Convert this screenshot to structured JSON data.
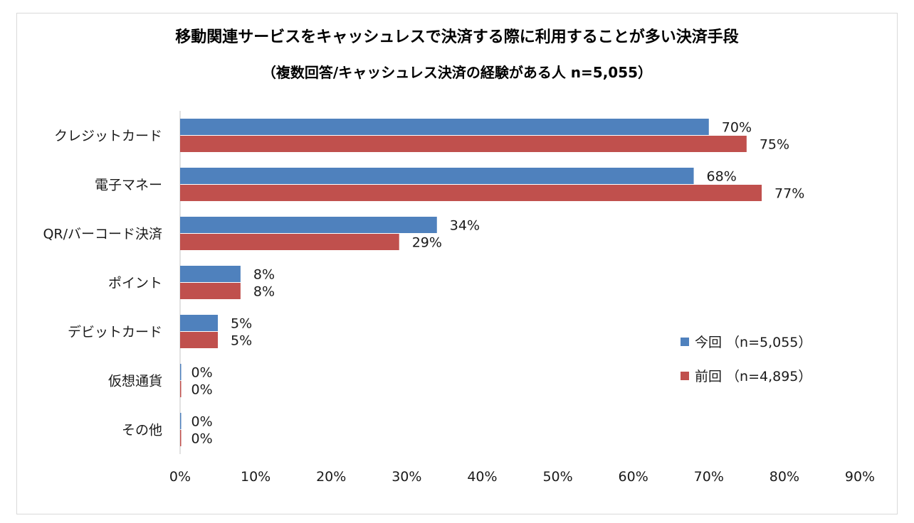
{
  "chart_data": {
    "type": "bar",
    "orientation": "horizontal",
    "title": "移動関連サービスをキャッシュレスで決済する際に利用することが多い決済手段",
    "subtitle": "（複数回答/キャッシュレス決済の経験がある人 n=5,055）",
    "categories": [
      "クレジットカード",
      "電子マネー",
      "QR/バーコード決済",
      "ポイント",
      "デビットカード",
      "仮想通貨",
      "その他"
    ],
    "series": [
      {
        "name": "今回 （n=5,055）",
        "color": "#4f81bd",
        "values": [
          70,
          68,
          34,
          8,
          5,
          0,
          0
        ],
        "labels": [
          "70%",
          "68%",
          "34%",
          "8%",
          "5%",
          "0%",
          "0%"
        ]
      },
      {
        "name": "前回 （n=4,895）",
        "color": "#c0504d",
        "values": [
          75,
          77,
          29,
          8,
          5,
          0,
          0
        ],
        "labels": [
          "75%",
          "77%",
          "29%",
          "8%",
          "5%",
          "0%",
          "0%"
        ]
      }
    ],
    "xlim": [
      0,
      90
    ],
    "xticks": [
      "0%",
      "10%",
      "20%",
      "30%",
      "40%",
      "50%",
      "60%",
      "70%",
      "80%",
      "90%"
    ],
    "grid": false,
    "legend": "lower-right"
  }
}
